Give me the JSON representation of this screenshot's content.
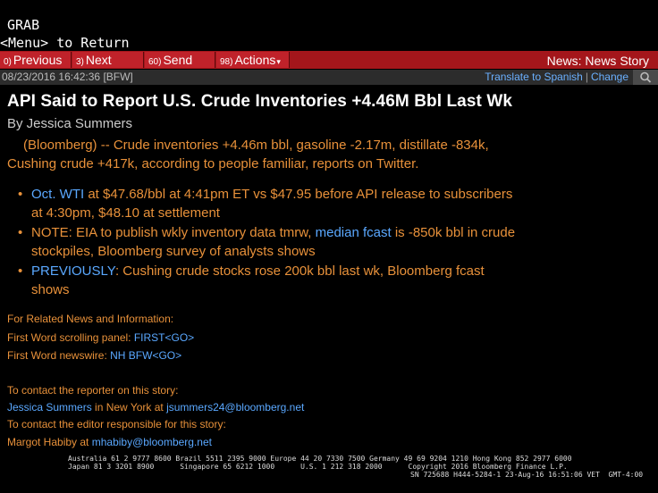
{
  "terminal": {
    "grab": "GRAB",
    "return_hint": "<Menu> to Return"
  },
  "toolbar": {
    "previous": {
      "num": "0)",
      "label": "Previous"
    },
    "next": {
      "num": "3)",
      "label": "Next"
    },
    "send": {
      "num": "60)",
      "label": "Send"
    },
    "actions": {
      "num": "98)",
      "label": "Actions"
    },
    "actions_arrow": "▾",
    "title": "News: News Story"
  },
  "meta": {
    "timestamp": "08/23/2016 16:42:36 [BFW]",
    "translate": "Translate to Spanish",
    "separator": "|",
    "change": "Change",
    "search_icon": "search-icon"
  },
  "story": {
    "headline": "API Said to Report U.S. Crude Inventories +4.46M Bbl Last Wk",
    "byline": "By Jessica Summers",
    "lead_1": "(Bloomberg) -- Crude inventories +4.46m bbl, gasoline -2.17m, distillate -834k,",
    "lead_2": "Cushing crude +417k, according to people familiar, reports on Twitter.",
    "bullets": {
      "b1_link1": "Oct. WTI",
      "b1_text": " at $47.68/bbl at 4:41pm ET vs $47.95 before API release to subscribers at 4:30pm, $48.10 at settlement",
      "b2_text1": "NOTE: EIA to publish wkly inventory data tmrw, ",
      "b2_link": "median fcast",
      "b2_text2": " is -850k bbl in crude stockpiles, Bloomberg survey of analysts shows",
      "b3_link": "PREVIOUSLY",
      "b3_text": ": Cushing crude stocks rose 200k bbl last wk, Bloomberg fcast shows"
    }
  },
  "related": {
    "heading": "For Related News and Information:",
    "line1_text": "First Word scrolling panel: ",
    "line1_link": "FIRST<GO>",
    "line2_text": "First Word newswire: ",
    "line2_link": "NH BFW<GO>"
  },
  "contact": {
    "reporter_heading": "To contact the reporter on this story:",
    "reporter_name": "Jessica Summers",
    "reporter_mid": " in New York at ",
    "reporter_email": "jsummers24@bloomberg.net",
    "editor_heading": "To contact the editor responsible for this story:",
    "editor_name": "Margot Habiby at ",
    "editor_email": "mhabiby@bloomberg.net"
  },
  "footer": {
    "line1": "Australia 61 2 9777 8600 Brazil 5511 2395 9000 Europe 44 20 7330 7500 Germany 49 69 9204 1210 Hong Kong 852 2977 6000",
    "line2": "Japan 81 3 3201 8900      Singapore 65 6212 1000      U.S. 1 212 318 2000      Copyright 2016 Bloomberg Finance L.P.",
    "line3": "SN 725688 H444-5284-1 23-Aug-16 16:51:06 VET  GMT-4:00"
  }
}
